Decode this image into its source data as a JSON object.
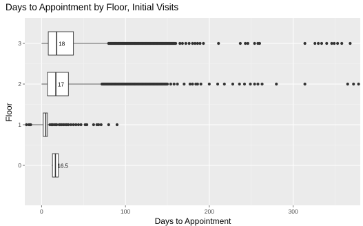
{
  "chart_data": {
    "type": "boxplot",
    "orientation": "horizontal",
    "title": "Days to Appointment by Floor, Initial Visits",
    "xlabel": "Days to Appointment",
    "ylabel": "Floor",
    "xlim": [
      -20,
      380
    ],
    "xticks": [
      0,
      100,
      200,
      300
    ],
    "categories": [
      "0",
      "1",
      "2",
      "3"
    ],
    "grid": true,
    "legend": "none",
    "colors": {
      "panel": "#ebebeb",
      "grid_major": "#ffffff",
      "grid_minor": "#f5f5f5",
      "box_fill": "#ffffff",
      "box_line": "#333333",
      "outlier": "#333333",
      "tick_label": "#4d4d4d"
    },
    "boxes": [
      {
        "floor": "0",
        "min": 12,
        "q1": 13,
        "median": 16.5,
        "q3": 20,
        "max": 21,
        "label": "16.5",
        "outliers": []
      },
      {
        "floor": "1",
        "min": -14,
        "q1": 2,
        "median": 5,
        "q3": 7,
        "max": 9,
        "label": "",
        "outliers": [
          -18,
          -15,
          -13,
          10,
          12,
          13,
          15,
          17,
          18,
          21,
          22,
          24,
          26,
          28,
          30,
          32,
          35,
          38,
          41,
          44,
          47,
          52,
          54,
          62,
          66,
          68,
          71,
          80,
          90
        ]
      },
      {
        "floor": "2",
        "min": 0,
        "q1": 7,
        "median": 17,
        "q3": 32,
        "max": 72,
        "label": "17",
        "outliers_range": [
          72,
          150
        ],
        "outliers": [
          154,
          158,
          162,
          170,
          177,
          180,
          184,
          186,
          190,
          200,
          210,
          218,
          228,
          236,
          242,
          249,
          254,
          258,
          263,
          280,
          314,
          365,
          372,
          378
        ]
      },
      {
        "floor": "3",
        "min": 0,
        "q1": 8,
        "median": 18,
        "q3": 38,
        "max": 80,
        "label": "18",
        "outliers_range": [
          80,
          160
        ],
        "outliers": [
          165,
          168,
          172,
          176,
          180,
          183,
          186,
          189,
          193,
          211,
          237,
          243,
          246,
          254,
          258,
          260,
          314,
          326,
          330,
          334,
          340,
          346,
          349,
          353,
          358,
          368
        ]
      }
    ]
  }
}
